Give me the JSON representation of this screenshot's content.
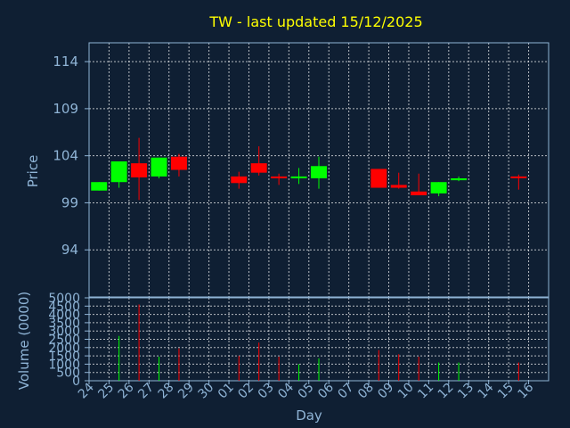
{
  "chart_data": {
    "type": "candlestick",
    "title": "TW - last updated 15/12/2025",
    "xlabel": "Day",
    "ylabel_price": "Price",
    "ylabel_volume": "Volume (0000)",
    "grid": true,
    "price_ticks": [
      94,
      99,
      104,
      109,
      114
    ],
    "price_range": [
      89,
      116
    ],
    "volume_ticks": [
      0,
      500,
      1000,
      1500,
      2000,
      2500,
      3000,
      3500,
      4000,
      4500,
      5000
    ],
    "volume_range": [
      0,
      5000
    ],
    "x_labels": [
      "24",
      "25",
      "26",
      "27",
      "28",
      "29",
      "30",
      "01",
      "02",
      "03",
      "04",
      "05",
      "06",
      "07",
      "08",
      "09",
      "10",
      "11",
      "12",
      "13",
      "14",
      "15",
      "16"
    ],
    "up_color": "#00ff00",
    "down_color": "#ff0000",
    "candles": [
      {
        "day": "24",
        "open": 100.3,
        "high": 101.2,
        "low": 100.3,
        "close": 101.2,
        "volume": 0
      },
      {
        "day": "25",
        "open": 101.2,
        "high": 103.4,
        "low": 100.6,
        "close": 103.4,
        "volume": 2700
      },
      {
        "day": "26",
        "open": 103.2,
        "high": 105.9,
        "low": 99.3,
        "close": 101.7,
        "volume": 4600
      },
      {
        "day": "27",
        "open": 101.8,
        "high": 103.8,
        "low": 101.6,
        "close": 103.8,
        "volume": 1450
      },
      {
        "day": "28",
        "open": 103.9,
        "high": 104.2,
        "low": 101.8,
        "close": 102.5,
        "volume": 1950
      },
      {
        "day": "01",
        "open": 101.8,
        "high": 102.3,
        "low": 100.5,
        "close": 101.1,
        "volume": 1500
      },
      {
        "day": "02",
        "open": 103.2,
        "high": 105.0,
        "low": 101.9,
        "close": 102.2,
        "volume": 2300
      },
      {
        "day": "03",
        "open": 101.8,
        "high": 102.1,
        "low": 100.9,
        "close": 101.6,
        "volume": 1450
      },
      {
        "day": "04",
        "open": 101.6,
        "high": 102.7,
        "low": 101.0,
        "close": 101.8,
        "volume": 1000
      },
      {
        "day": "05",
        "open": 101.6,
        "high": 103.9,
        "low": 100.5,
        "close": 102.9,
        "volume": 1350
      },
      {
        "day": "08",
        "open": 102.6,
        "high": 102.6,
        "low": 100.6,
        "close": 100.6,
        "volume": 1850
      },
      {
        "day": "09",
        "open": 100.9,
        "high": 102.2,
        "low": 100.5,
        "close": 100.6,
        "volume": 1600
      },
      {
        "day": "10",
        "open": 100.2,
        "high": 102.1,
        "low": 99.8,
        "close": 99.8,
        "volume": 1450
      },
      {
        "day": "11",
        "open": 100.0,
        "high": 101.2,
        "low": 99.7,
        "close": 101.2,
        "volume": 1100
      },
      {
        "day": "12",
        "open": 101.4,
        "high": 101.8,
        "low": 101.3,
        "close": 101.6,
        "volume": 1100
      },
      {
        "day": "15",
        "open": 101.8,
        "high": 102.0,
        "low": 100.4,
        "close": 101.7,
        "volume": 1100
      }
    ]
  }
}
